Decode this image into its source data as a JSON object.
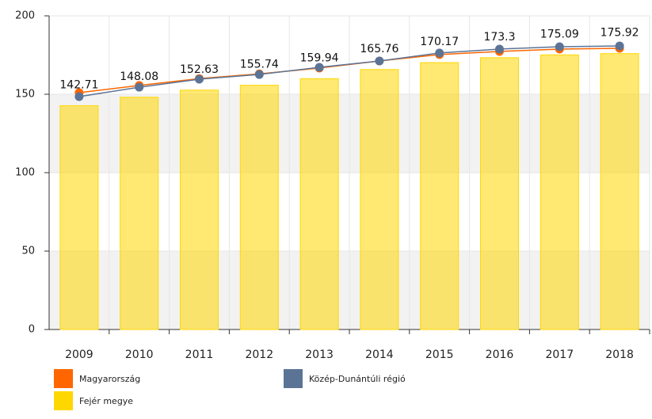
{
  "chart_data": {
    "type": "bar",
    "categories": [
      "2009",
      "2010",
      "2011",
      "2012",
      "2013",
      "2014",
      "2015",
      "2016",
      "2017",
      "2018"
    ],
    "series": [
      {
        "name": "Magyarország",
        "color": "#ff6600",
        "type": "line",
        "values": [
          151,
          155.6,
          160,
          163,
          166.7,
          171.2,
          175.3,
          177.3,
          178.8,
          179.3
        ]
      },
      {
        "name": "Közép-Dunántúli régió",
        "color": "#5b7496",
        "type": "line",
        "values": [
          148.5,
          154.5,
          159.6,
          162.6,
          167.2,
          171.2,
          176.3,
          178.8,
          180.3,
          180.8
        ]
      },
      {
        "name": "Fejér megye",
        "color": "#ffd700",
        "type": "bar",
        "values": [
          142.71,
          148.08,
          152.63,
          155.74,
          159.94,
          165.76,
          170.17,
          173.3,
          175.09,
          175.92
        ]
      }
    ],
    "ylim": [
      0,
      200
    ],
    "yticks": [
      0,
      50,
      100,
      150,
      200
    ],
    "grid": true
  }
}
